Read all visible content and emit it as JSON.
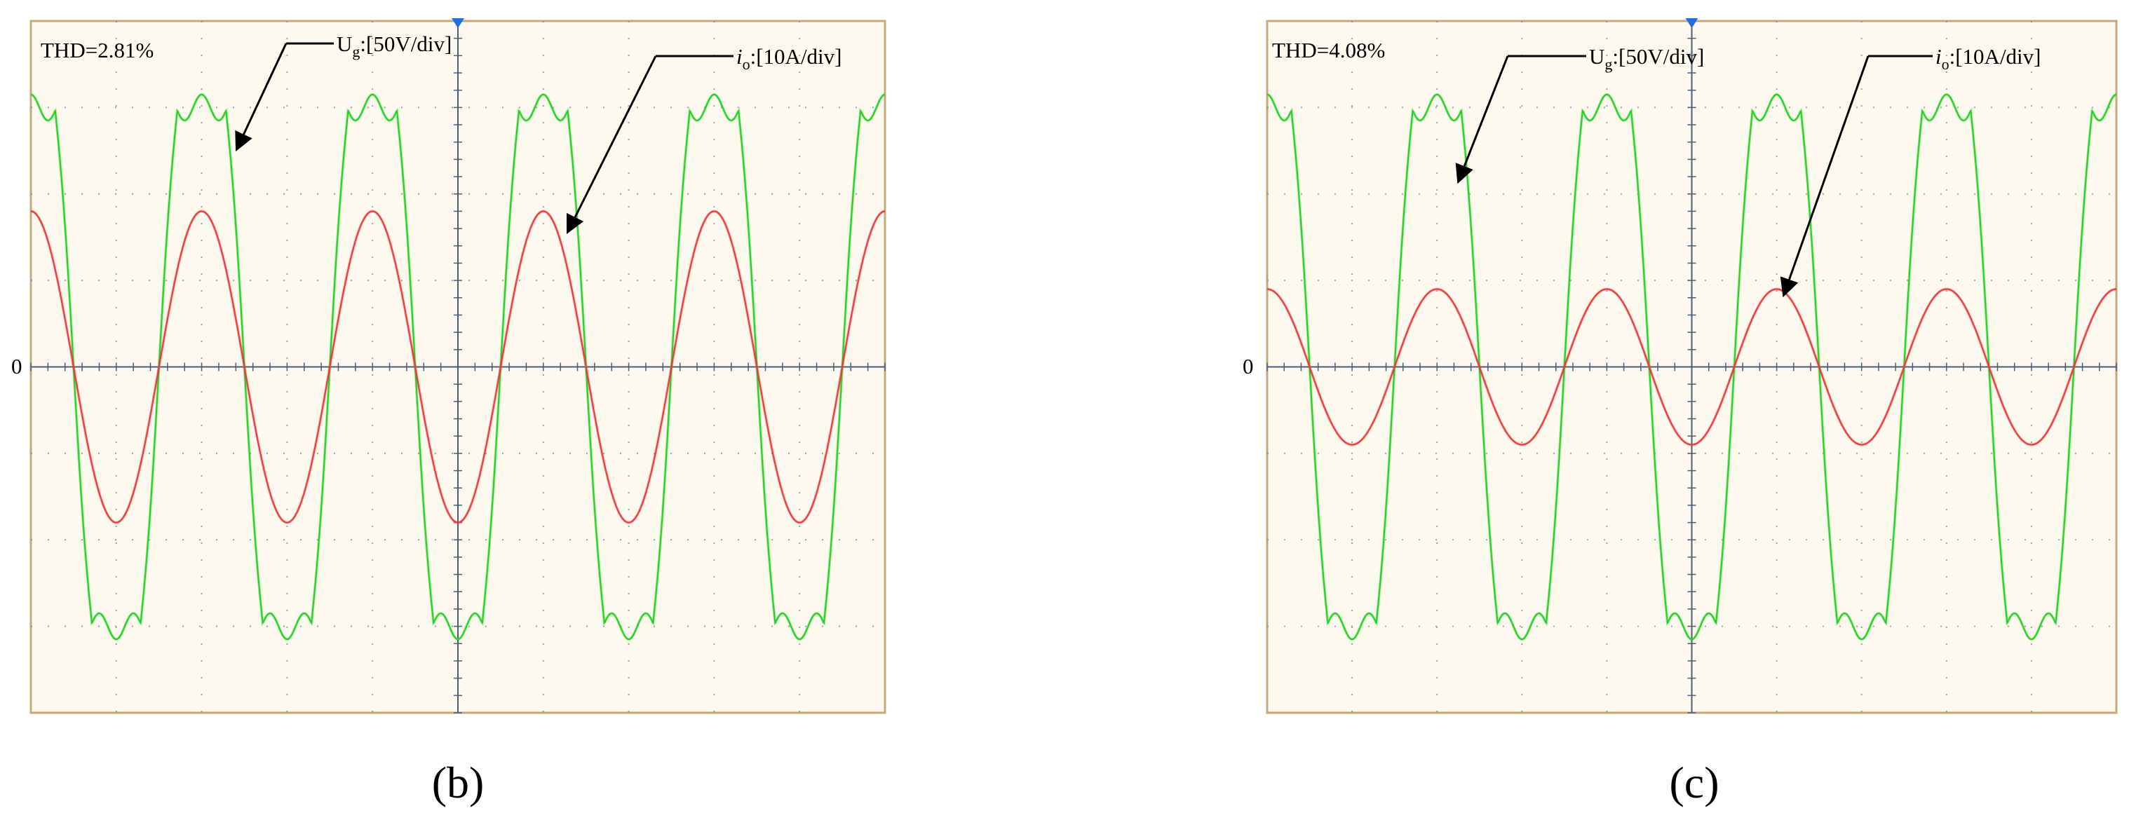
{
  "colors": {
    "frame_background": "#fdf9ef",
    "frame_border": "#c8a77a",
    "grid": "#7f8aa0",
    "axis": "#4b5c7c",
    "voltage_trace": "#22d022",
    "current_trace": "#e63b3b",
    "trigger_marker": "#1e6fe0"
  },
  "panels": [
    {
      "id": "b",
      "caption": "(b)",
      "thd_label": "THD=2.81%",
      "zero_label": "0",
      "ug_label": {
        "main": "U",
        "sub": "g",
        "rest": ":[50V/div]"
      },
      "io_label": {
        "main": "i",
        "sub": "o",
        "rest": ":[10A/div]"
      }
    },
    {
      "id": "c",
      "caption": "(c)",
      "thd_label": "THD=4.08%",
      "zero_label": "0",
      "ug_label": {
        "main": "U",
        "sub": "g",
        "rest": ":[50V/div]"
      },
      "io_label": {
        "main": "i",
        "sub": "o",
        "rest": ":[10A/div]"
      }
    }
  ],
  "chart_data": [
    {
      "type": "line",
      "grid": "10x8 divisions",
      "x_divisions": 10,
      "y_divisions": 8,
      "series": [
        {
          "name": "Ug",
          "unit_per_div": "50V/div",
          "shape": "clipped sine (flat-topped)",
          "amplitude_div": 3.0,
          "cycles": 5,
          "phase_deg": 90
        },
        {
          "name": "io",
          "unit_per_div": "10A/div",
          "shape": "sine",
          "amplitude_div": 1.8,
          "cycles": 5,
          "phase_deg": 90
        }
      ]
    },
    {
      "type": "line",
      "grid": "10x8 divisions",
      "x_divisions": 10,
      "y_divisions": 8,
      "series": [
        {
          "name": "Ug",
          "unit_per_div": "50V/div",
          "shape": "clipped sine (flat-topped)",
          "amplitude_div": 3.0,
          "cycles": 5,
          "phase_deg": 90
        },
        {
          "name": "io",
          "unit_per_div": "10A/div",
          "shape": "sine",
          "amplitude_div": 0.9,
          "cycles": 5,
          "phase_deg": 90
        }
      ]
    }
  ]
}
